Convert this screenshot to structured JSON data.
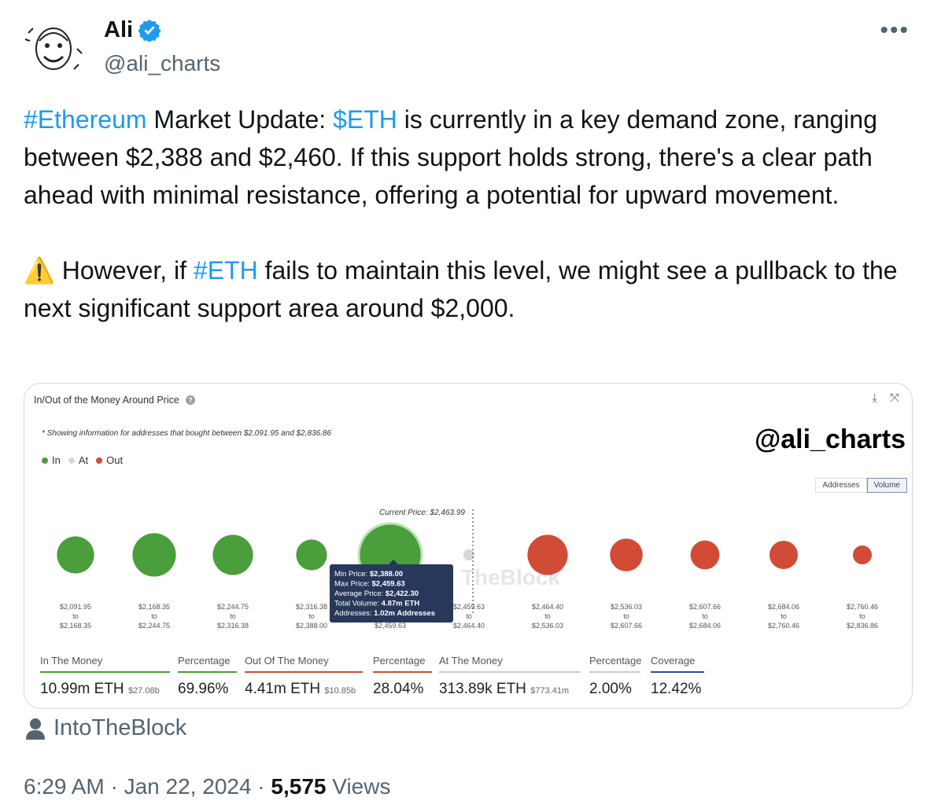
{
  "author": {
    "name": "Ali",
    "handle": "@ali_charts"
  },
  "tweet": {
    "p1": [
      {
        "t": "#Ethereum",
        "tag": true
      },
      {
        "t": " Market Update: ",
        "tag": false
      },
      {
        "t": "$ETH",
        "tag": true
      },
      {
        "t": " is currently in a key demand zone, ranging between $2,388 and $2,460. If this support holds strong, there's a clear path ahead with minimal resistance, offering a potential for upward movement.",
        "tag": false
      }
    ],
    "p2": [
      {
        "t": "⚠️ However, if ",
        "tag": false
      },
      {
        "t": "#ETH",
        "tag": true
      },
      {
        "t": " fails to maintain this level, we might see a pullback to the next significant support area around $2,000.",
        "tag": false
      }
    ]
  },
  "card": {
    "title": "In/Out of the Money Around Price",
    "note": "* Showing information for addresses that bought between $2,091.95 and $2,836.86",
    "watermark": "@ali_charts",
    "legend": [
      {
        "label": "In",
        "color": "#4a9e3b"
      },
      {
        "label": "At",
        "color": "#d9d9d9"
      },
      {
        "label": "Out",
        "color": "#d24b36"
      }
    ],
    "toggle": [
      "Addresses",
      "Volume"
    ],
    "current_price_label": "Current Price: $2,463.99",
    "faint_logo": "TheBlock",
    "tooltip": [
      {
        "k": "Min Price:",
        "v": "$2,388.00"
      },
      {
        "k": "Max Price:",
        "v": "$2,459.63"
      },
      {
        "k": "Average Price:",
        "v": "$2,422.30"
      },
      {
        "k": "Total Volume:",
        "v": "4.87m ETH"
      },
      {
        "k": "Addresses:",
        "v": "1.02m Addresses"
      }
    ],
    "stats": [
      {
        "label": "In The Money",
        "value": "10.99m ETH",
        "sub": "$27.08b",
        "color": "#4a9e3b"
      },
      {
        "label": "Percentage",
        "value": "69.96%",
        "sub": "",
        "color": "#4a9e3b"
      },
      {
        "label": "Out Of The Money",
        "value": "4.41m ETH",
        "sub": "$10.85b",
        "color": "#d24b36"
      },
      {
        "label": "Percentage",
        "value": "28.04%",
        "sub": "",
        "color": "#d24b36"
      },
      {
        "label": "At The Money",
        "value": "313.89k ETH",
        "sub": "$773.41m",
        "color": "#cccccc"
      },
      {
        "label": "Percentage",
        "value": "2.00%",
        "sub": "",
        "color": "#cccccc"
      },
      {
        "label": "Coverage",
        "value": "12.42%",
        "sub": "",
        "color": "#2f4f9e"
      }
    ]
  },
  "chart_data": {
    "type": "scatter",
    "title": "In/Out of the Money Around Price",
    "bubble_size_metric": "Volume",
    "categories": [
      {
        "from": "$2,091.95",
        "to": "$2,168.35",
        "status": "In"
      },
      {
        "from": "$2,168.35",
        "to": "$2,244.75",
        "status": "In"
      },
      {
        "from": "$2,244.75",
        "to": "$2,316.38",
        "status": "In"
      },
      {
        "from": "$2,316.38",
        "to": "$2,388.00",
        "status": "In"
      },
      {
        "from": "$2,388.00",
        "to": "$2,459.63",
        "status": "In"
      },
      {
        "from": "$2,459.63",
        "to": "$2,464.40",
        "status": "At"
      },
      {
        "from": "$2,464.40",
        "to": "$2,536.03",
        "status": "Out"
      },
      {
        "from": "$2,536.03",
        "to": "$2,607.66",
        "status": "Out"
      },
      {
        "from": "$2,607.66",
        "to": "$2,684.06",
        "status": "Out"
      },
      {
        "from": "$2,684.06",
        "to": "$2,760.46",
        "status": "Out"
      },
      {
        "from": "$2,760.46",
        "to": "$2,836.86",
        "status": "Out"
      }
    ],
    "relative_volume": [
      0.59,
      0.69,
      0.64,
      0.49,
      1.0,
      0.18,
      0.64,
      0.52,
      0.46,
      0.45,
      0.3
    ],
    "volume_eth": [
      null,
      null,
      null,
      null,
      "4.87m ETH",
      null,
      null,
      null,
      null,
      null,
      null
    ],
    "current_price": "$2,463.99",
    "colors": {
      "In": "#4a9e3b",
      "At": "#d9d9d9",
      "Out": "#d24b36"
    }
  },
  "source": "IntoTheBlock",
  "meta": {
    "time": "6:29 AM · Jan 22, 2024 · ",
    "views_count": "5,575",
    "views_label": " Views"
  }
}
